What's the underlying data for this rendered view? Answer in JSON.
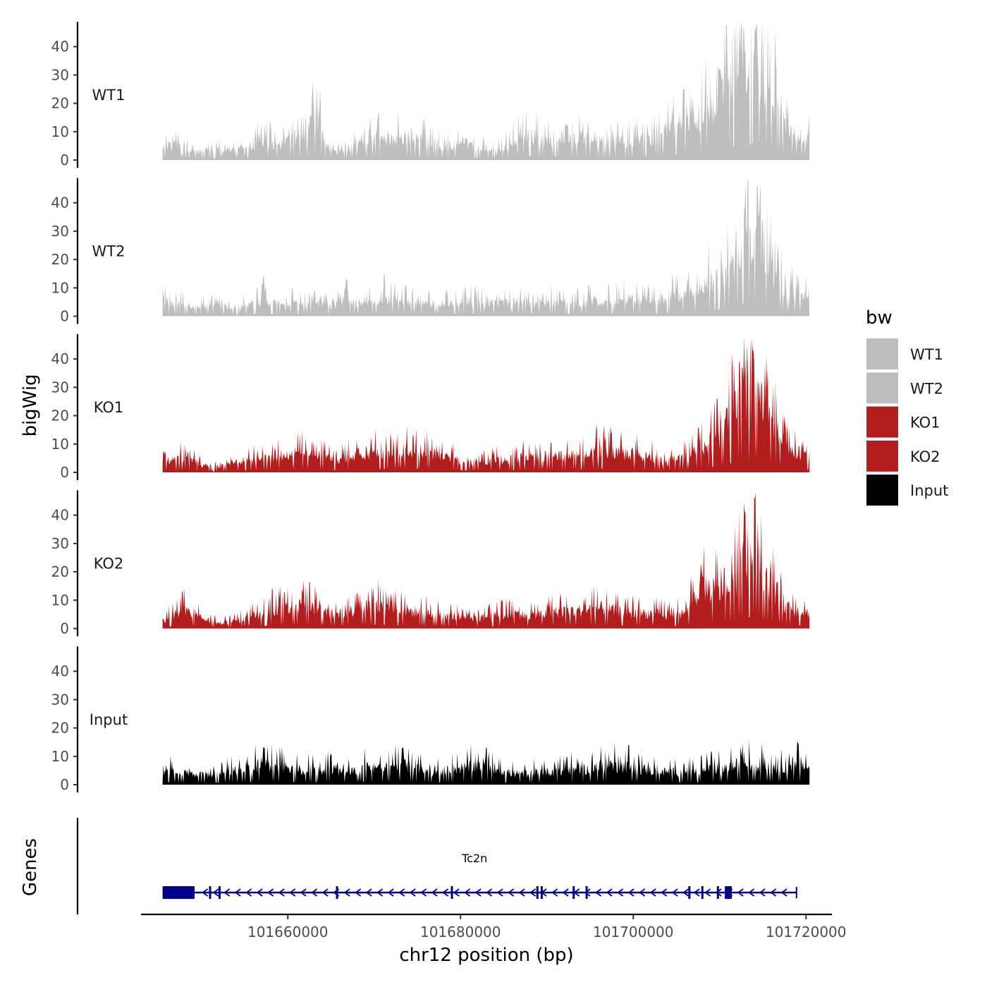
{
  "chart_data": {
    "type": "area",
    "title": "",
    "xlabel": "chr12 position (bp)",
    "ylabel": "bigWig",
    "genes_label": "Genes",
    "legend_title": "bw",
    "xlim": [
      101643000,
      101723000
    ],
    "ylim": [
      0,
      48
    ],
    "x_ticks": [
      101660000,
      101680000,
      101700000,
      101720000
    ],
    "x_tick_labels": [
      "101660000",
      "101680000",
      "101700000",
      "101720000"
    ],
    "y_ticks": [
      0,
      10,
      20,
      30,
      40
    ],
    "y_tick_labels": [
      "0",
      "10",
      "20",
      "30",
      "40"
    ],
    "signal_start": 101645500,
    "signal_end": 101720400,
    "series": [
      {
        "name": "WT1",
        "color": "#bebebe",
        "anchors": [
          [
            101645500,
            5
          ],
          [
            101647000,
            6
          ],
          [
            101649000,
            3
          ],
          [
            101651000,
            4
          ],
          [
            101653000,
            4
          ],
          [
            101655000,
            5
          ],
          [
            101657000,
            8
          ],
          [
            101659000,
            6
          ],
          [
            101661000,
            9
          ],
          [
            101662000,
            8
          ],
          [
            101663200,
            20
          ],
          [
            101664500,
            5
          ],
          [
            101666000,
            3
          ],
          [
            101668000,
            6
          ],
          [
            101670000,
            9
          ],
          [
            101672000,
            8
          ],
          [
            101674000,
            10
          ],
          [
            101676000,
            8
          ],
          [
            101678000,
            5
          ],
          [
            101680000,
            7
          ],
          [
            101682000,
            5
          ],
          [
            101684000,
            3
          ],
          [
            101686000,
            7
          ],
          [
            101688000,
            10
          ],
          [
            101690000,
            7
          ],
          [
            101692000,
            8
          ],
          [
            101694000,
            9
          ],
          [
            101696000,
            8
          ],
          [
            101698000,
            7
          ],
          [
            101700000,
            8
          ],
          [
            101702000,
            7
          ],
          [
            101704000,
            12
          ],
          [
            101706000,
            14
          ],
          [
            101708000,
            18
          ],
          [
            101710000,
            24
          ],
          [
            101711500,
            30
          ],
          [
            101712500,
            42
          ],
          [
            101713200,
            30
          ],
          [
            101714000,
            44
          ],
          [
            101715000,
            30
          ],
          [
            101716000,
            28
          ],
          [
            101717000,
            16
          ],
          [
            101718000,
            12
          ],
          [
            101720400,
            8
          ]
        ],
        "spikes": [
          [
            101663800,
            20
          ],
          [
            101710000,
            32
          ],
          [
            101712800,
            46
          ],
          [
            101714300,
            47
          ],
          [
            101716500,
            32
          ]
        ]
      },
      {
        "name": "WT2",
        "color": "#bebebe",
        "anchors": [
          [
            101645500,
            6
          ],
          [
            101647000,
            5
          ],
          [
            101649000,
            4
          ],
          [
            101651000,
            4
          ],
          [
            101653000,
            3
          ],
          [
            101655000,
            4
          ],
          [
            101657000,
            6
          ],
          [
            101659000,
            5
          ],
          [
            101661000,
            5
          ],
          [
            101663000,
            5
          ],
          [
            101665000,
            4
          ],
          [
            101667000,
            6
          ],
          [
            101669000,
            5
          ],
          [
            101671000,
            7
          ],
          [
            101673000,
            6
          ],
          [
            101675000,
            5
          ],
          [
            101677000,
            5
          ],
          [
            101679000,
            5
          ],
          [
            101681000,
            6
          ],
          [
            101683000,
            5
          ],
          [
            101685000,
            5
          ],
          [
            101687000,
            6
          ],
          [
            101689000,
            5
          ],
          [
            101691000,
            6
          ],
          [
            101693000,
            5
          ],
          [
            101695000,
            6
          ],
          [
            101697000,
            6
          ],
          [
            101699000,
            7
          ],
          [
            101701000,
            6
          ],
          [
            101703000,
            6
          ],
          [
            101705000,
            8
          ],
          [
            101707000,
            10
          ],
          [
            101709000,
            14
          ],
          [
            101711000,
            18
          ],
          [
            101712500,
            24
          ],
          [
            101713000,
            34
          ],
          [
            101713800,
            24
          ],
          [
            101714600,
            36
          ],
          [
            101715500,
            22
          ],
          [
            101716500,
            14
          ],
          [
            101718000,
            10
          ],
          [
            101720400,
            7
          ]
        ],
        "spikes": [
          [
            101657200,
            14
          ],
          [
            101666800,
            13
          ],
          [
            101671200,
            15
          ],
          [
            101712900,
            38
          ],
          [
            101714400,
            46
          ]
        ]
      },
      {
        "name": "KO1",
        "color": "#b21e1e",
        "anchors": [
          [
            101645500,
            4
          ],
          [
            101647000,
            5
          ],
          [
            101648500,
            6
          ],
          [
            101650000,
            3
          ],
          [
            101652000,
            2
          ],
          [
            101654000,
            4
          ],
          [
            101656000,
            5
          ],
          [
            101658000,
            6
          ],
          [
            101660000,
            7
          ],
          [
            101662000,
            8
          ],
          [
            101664000,
            6
          ],
          [
            101666000,
            5
          ],
          [
            101668000,
            7
          ],
          [
            101670000,
            8
          ],
          [
            101672000,
            7
          ],
          [
            101674000,
            9
          ],
          [
            101676000,
            8
          ],
          [
            101678000,
            6
          ],
          [
            101680000,
            5
          ],
          [
            101682000,
            4
          ],
          [
            101684000,
            5
          ],
          [
            101686000,
            5
          ],
          [
            101688000,
            6
          ],
          [
            101690000,
            7
          ],
          [
            101692000,
            6
          ],
          [
            101694000,
            8
          ],
          [
            101696000,
            9
          ],
          [
            101698000,
            8
          ],
          [
            101700000,
            7
          ],
          [
            101702000,
            6
          ],
          [
            101704000,
            4
          ],
          [
            101706000,
            7
          ],
          [
            101708000,
            10
          ],
          [
            101710000,
            14
          ],
          [
            101711500,
            22
          ],
          [
            101712500,
            34
          ],
          [
            101713200,
            22
          ],
          [
            101714000,
            36
          ],
          [
            101715000,
            24
          ],
          [
            101716000,
            20
          ],
          [
            101717500,
            10
          ],
          [
            101720400,
            6
          ]
        ],
        "spikes": [
          [
            101674500,
            13
          ],
          [
            101712600,
            37
          ],
          [
            101713900,
            43
          ],
          [
            101715500,
            30
          ]
        ]
      },
      {
        "name": "KO2",
        "color": "#b21e1e",
        "anchors": [
          [
            101645500,
            3
          ],
          [
            101647000,
            6
          ],
          [
            101648500,
            8
          ],
          [
            101650000,
            4
          ],
          [
            101652000,
            2
          ],
          [
            101654000,
            3
          ],
          [
            101656000,
            5
          ],
          [
            101658000,
            7
          ],
          [
            101660000,
            8
          ],
          [
            101662000,
            9
          ],
          [
            101664000,
            7
          ],
          [
            101666000,
            5
          ],
          [
            101668000,
            8
          ],
          [
            101670000,
            9
          ],
          [
            101672000,
            8
          ],
          [
            101674000,
            7
          ],
          [
            101676000,
            6
          ],
          [
            101678000,
            5
          ],
          [
            101680000,
            5
          ],
          [
            101682000,
            4
          ],
          [
            101684000,
            5
          ],
          [
            101686000,
            6
          ],
          [
            101688000,
            5
          ],
          [
            101690000,
            6
          ],
          [
            101692000,
            7
          ],
          [
            101694000,
            7
          ],
          [
            101696000,
            8
          ],
          [
            101698000,
            7
          ],
          [
            101700000,
            6
          ],
          [
            101702000,
            6
          ],
          [
            101704000,
            5
          ],
          [
            101706000,
            6
          ],
          [
            101708000,
            17
          ],
          [
            101710000,
            14
          ],
          [
            101711500,
            16
          ],
          [
            101712500,
            28
          ],
          [
            101713200,
            22
          ],
          [
            101714200,
            40
          ],
          [
            101715000,
            20
          ],
          [
            101716500,
            14
          ],
          [
            101718000,
            8
          ],
          [
            101720400,
            6
          ]
        ],
        "spikes": [
          [
            101647800,
            13
          ],
          [
            101658200,
            14
          ],
          [
            101712800,
            31
          ],
          [
            101714000,
            46
          ]
        ]
      },
      {
        "name": "Input",
        "color": "#000000",
        "anchors": [
          [
            101645500,
            6
          ],
          [
            101647000,
            5
          ],
          [
            101649000,
            4
          ],
          [
            101651000,
            4
          ],
          [
            101653000,
            5
          ],
          [
            101655000,
            6
          ],
          [
            101657000,
            8
          ],
          [
            101659000,
            7
          ],
          [
            101661000,
            6
          ],
          [
            101663000,
            6
          ],
          [
            101665000,
            6
          ],
          [
            101667000,
            5
          ],
          [
            101669000,
            7
          ],
          [
            101671000,
            6
          ],
          [
            101673000,
            8
          ],
          [
            101675000,
            6
          ],
          [
            101677000,
            5
          ],
          [
            101679000,
            6
          ],
          [
            101681000,
            7
          ],
          [
            101683000,
            8
          ],
          [
            101685000,
            5
          ],
          [
            101687000,
            4
          ],
          [
            101689000,
            5
          ],
          [
            101691000,
            5
          ],
          [
            101693000,
            6
          ],
          [
            101695000,
            6
          ],
          [
            101697000,
            8
          ],
          [
            101699000,
            7
          ],
          [
            101701000,
            6
          ],
          [
            101703000,
            5
          ],
          [
            101705000,
            5
          ],
          [
            101707000,
            5
          ],
          [
            101709000,
            6
          ],
          [
            101711000,
            7
          ],
          [
            101713000,
            8
          ],
          [
            101715000,
            8
          ],
          [
            101717000,
            6
          ],
          [
            101719000,
            9
          ],
          [
            101720400,
            6
          ]
        ],
        "spikes": [
          [
            101657300,
            13
          ],
          [
            101673300,
            13
          ],
          [
            101683000,
            13
          ],
          [
            101699500,
            14
          ],
          [
            101719000,
            15
          ]
        ]
      }
    ],
    "gene": {
      "name": "Tc2n",
      "strand": "-",
      "start": 101645500,
      "end": 101718900,
      "color": "#00008b",
      "thick_blocks": [
        [
          101645500,
          101649200
        ],
        [
          101710600,
          101711400
        ]
      ],
      "exons": [
        101651000,
        101652100,
        101665700,
        101679000,
        101688900,
        101689400,
        101693100,
        101694600,
        101706500,
        101708000,
        101709800
      ]
    },
    "legend": [
      {
        "label": "WT1",
        "color": "#bebebe"
      },
      {
        "label": "WT2",
        "color": "#bebebe"
      },
      {
        "label": "KO1",
        "color": "#b21e1e"
      },
      {
        "label": "KO2",
        "color": "#b21e1e"
      },
      {
        "label": "Input",
        "color": "#000000"
      }
    ]
  }
}
